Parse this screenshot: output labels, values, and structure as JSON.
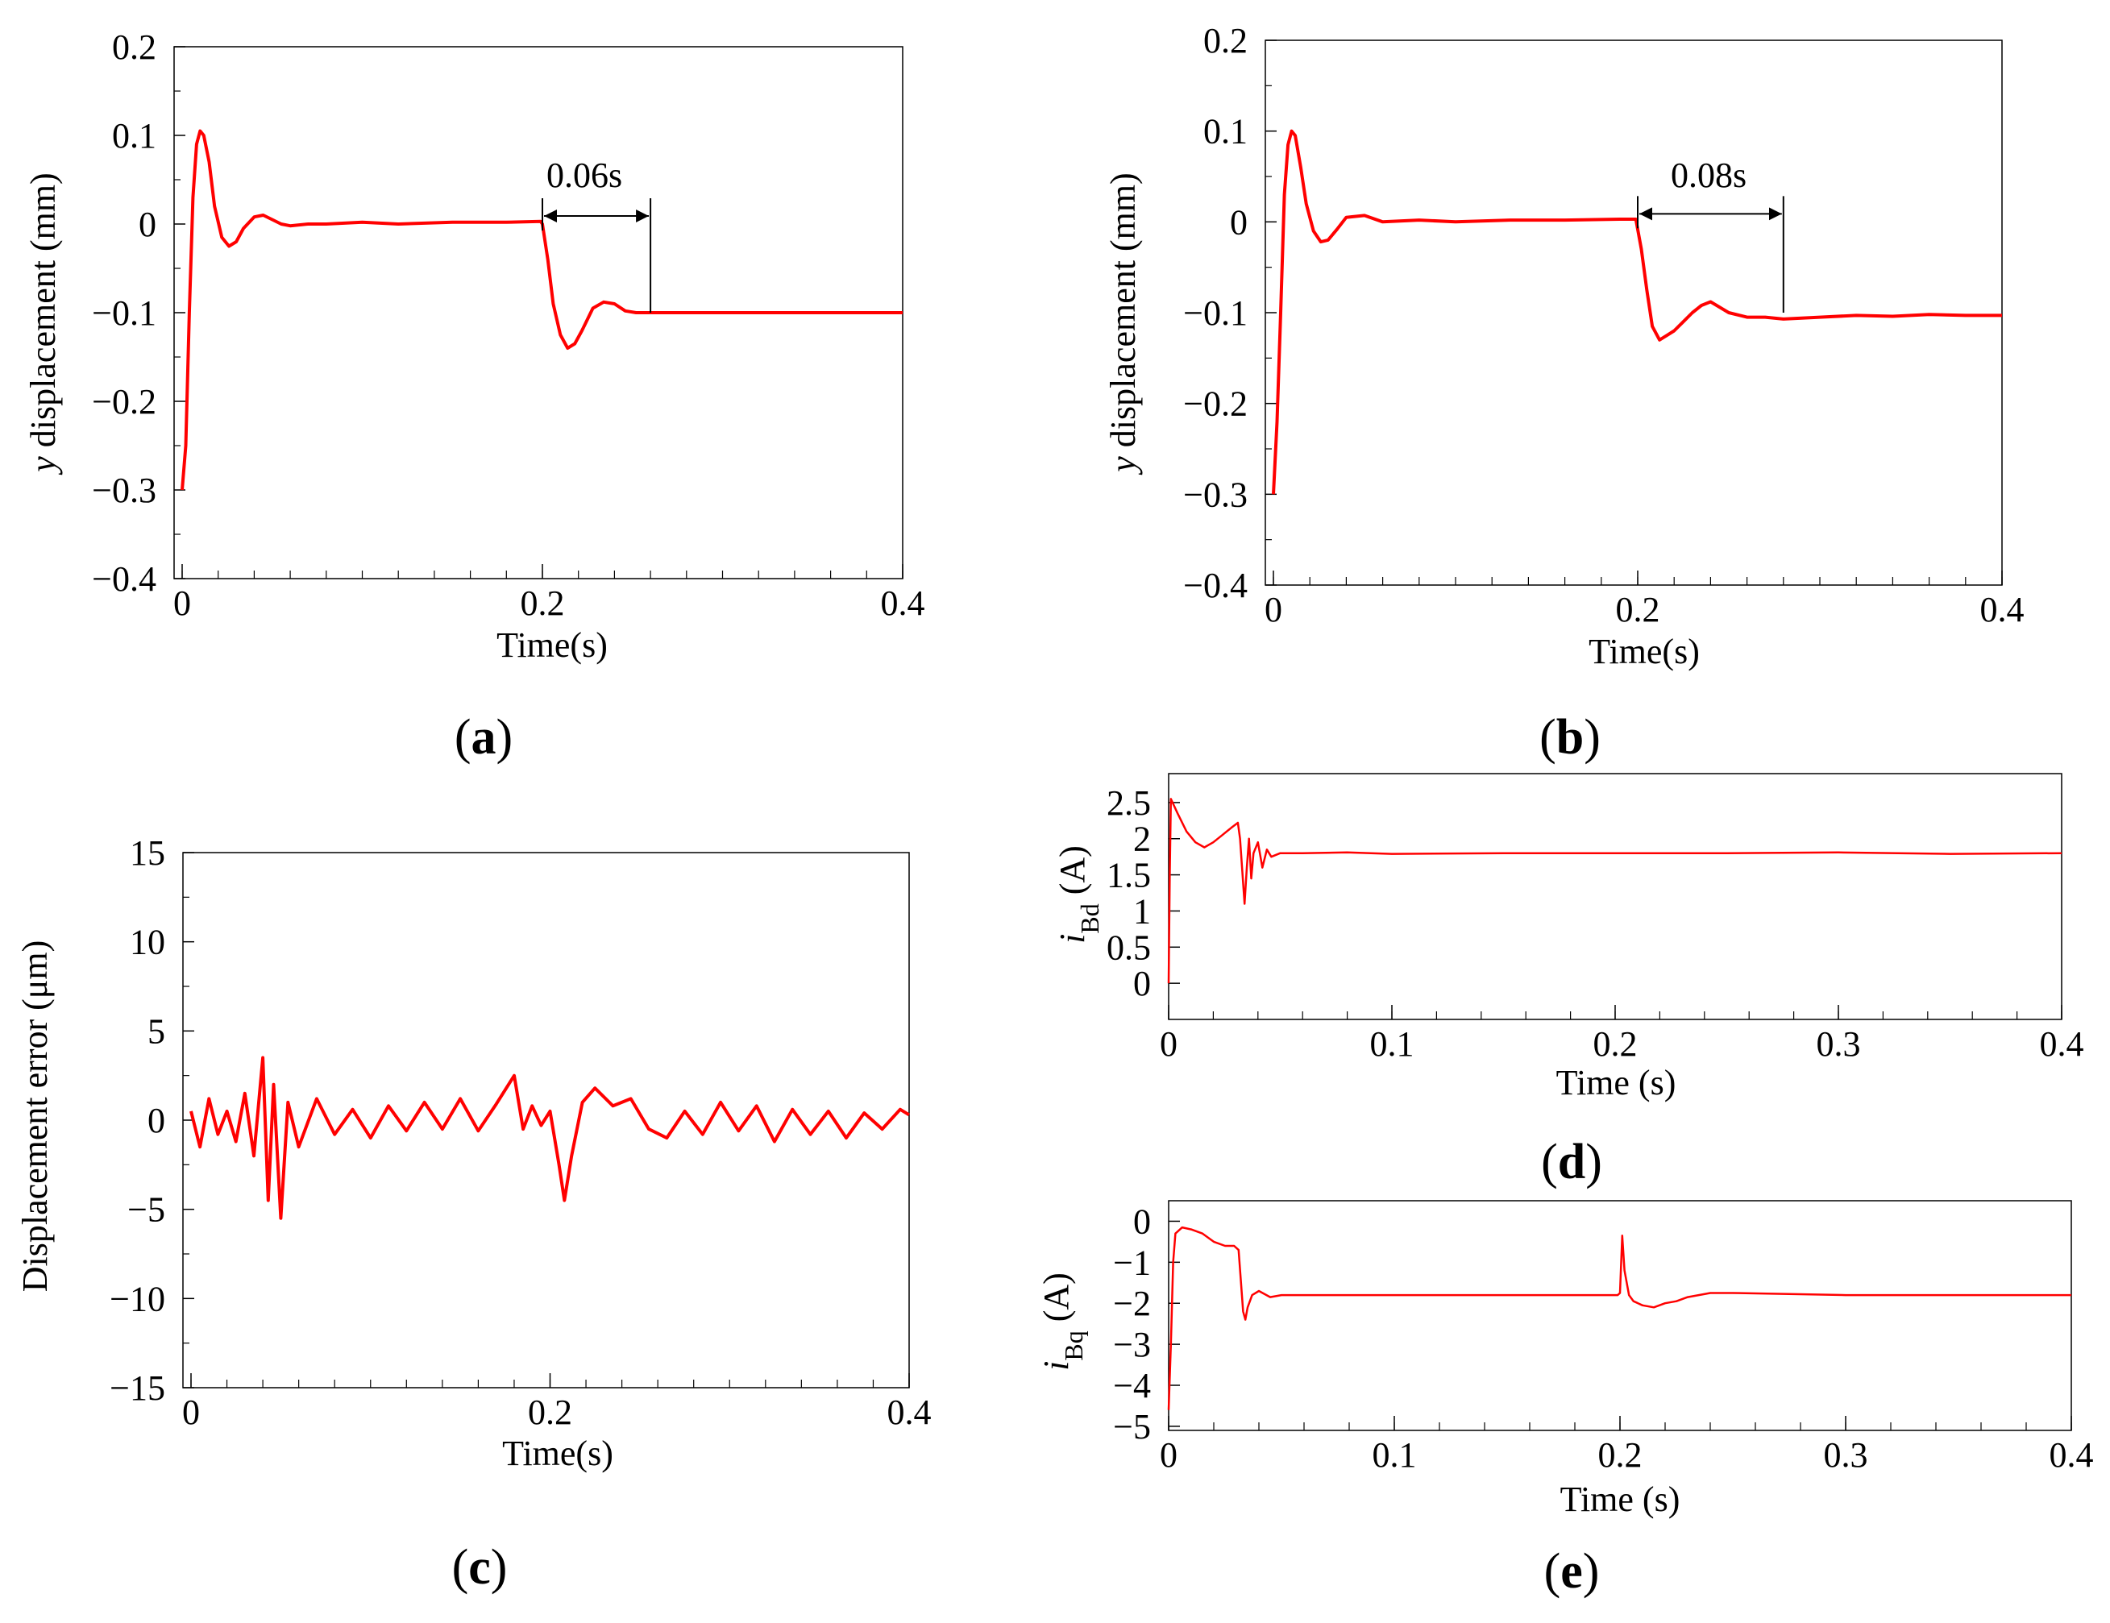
{
  "colors": {
    "series": "#ff0000",
    "axis": "#000000",
    "background": "#ffffff"
  },
  "panels": [
    {
      "label_open": "(",
      "label_letter": "a",
      "label_close": ")"
    },
    {
      "label_open": "(",
      "label_letter": "b",
      "label_close": ")"
    },
    {
      "label_open": "(",
      "label_letter": "c",
      "label_close": ")"
    },
    {
      "label_open": "(",
      "label_letter": "d",
      "label_close": ")"
    },
    {
      "label_open": "(",
      "label_letter": "e",
      "label_close": ")"
    }
  ],
  "chart_data": [
    {
      "type": "line",
      "xlabel": "Time(s)",
      "ylabel": "y displacement (mm)",
      "ylabel_italic": "y",
      "ylabel_rest": " displacement (mm)",
      "xlim": [
        0,
        0.4
      ],
      "ylim": [
        -0.4,
        0.2
      ],
      "xticks": [
        0,
        0.2,
        0.4
      ],
      "xtick_labels": [
        "0",
        "0.2",
        "0.4"
      ],
      "yticks": [
        -0.4,
        -0.3,
        -0.2,
        -0.1,
        0,
        0.1,
        0.2
      ],
      "ytick_labels": [
        "−0.4",
        "−0.3",
        "−0.2",
        "−0.1",
        "0",
        "0.1",
        "0.2"
      ],
      "grid": false,
      "annotation": {
        "text": "0.06s",
        "x_start": 0.2,
        "x_end": 0.26,
        "y": 0.0
      },
      "series": [
        {
          "x": [
            0,
            0.002,
            0.004,
            0.006,
            0.008,
            0.01,
            0.012,
            0.015,
            0.018,
            0.022,
            0.026,
            0.03,
            0.034,
            0.04,
            0.045,
            0.05,
            0.055,
            0.06,
            0.07,
            0.08,
            0.1,
            0.12,
            0.15,
            0.18,
            0.199,
            0.2,
            0.203,
            0.206,
            0.21,
            0.214,
            0.218,
            0.222,
            0.228,
            0.234,
            0.24,
            0.246,
            0.252,
            0.258,
            0.26,
            0.3,
            0.35,
            0.4
          ],
          "y": [
            -0.3,
            -0.25,
            -0.1,
            0.03,
            0.09,
            0.105,
            0.1,
            0.07,
            0.02,
            -0.015,
            -0.025,
            -0.02,
            -0.005,
            0.008,
            0.01,
            0.005,
            0.0,
            -0.002,
            0.0,
            0.0,
            0.002,
            0.0,
            0.002,
            0.002,
            0.003,
            0.0,
            -0.04,
            -0.09,
            -0.125,
            -0.14,
            -0.135,
            -0.12,
            -0.095,
            -0.088,
            -0.09,
            -0.098,
            -0.1,
            -0.1,
            -0.1,
            -0.1,
            -0.1,
            -0.1
          ]
        }
      ]
    },
    {
      "type": "line",
      "xlabel": "Time(s)",
      "ylabel": "y displacement (mm)",
      "ylabel_italic": "y",
      "ylabel_rest": " displacement (mm)",
      "xlim": [
        0,
        0.4
      ],
      "ylim": [
        -0.4,
        0.2
      ],
      "xticks": [
        0,
        0.2,
        0.4
      ],
      "xtick_labels": [
        "0",
        "0.2",
        "0.4"
      ],
      "yticks": [
        -0.4,
        -0.3,
        -0.2,
        -0.1,
        0,
        0.1,
        0.2
      ],
      "ytick_labels": [
        "−0.4",
        "−0.3",
        "−0.2",
        "−0.1",
        "0",
        "0.1",
        "0.2"
      ],
      "grid": false,
      "annotation": {
        "text": "0.08s",
        "x_start": 0.2,
        "x_end": 0.28,
        "y": 0.0
      },
      "series": [
        {
          "x": [
            0,
            0.002,
            0.004,
            0.006,
            0.008,
            0.01,
            0.012,
            0.015,
            0.018,
            0.022,
            0.026,
            0.03,
            0.035,
            0.04,
            0.05,
            0.06,
            0.08,
            0.1,
            0.13,
            0.16,
            0.19,
            0.199,
            0.202,
            0.205,
            0.208,
            0.212,
            0.216,
            0.22,
            0.225,
            0.23,
            0.235,
            0.24,
            0.25,
            0.26,
            0.27,
            0.28,
            0.3,
            0.32,
            0.34,
            0.36,
            0.38,
            0.4
          ],
          "y": [
            -0.3,
            -0.22,
            -0.1,
            0.03,
            0.085,
            0.1,
            0.095,
            0.06,
            0.02,
            -0.01,
            -0.022,
            -0.02,
            -0.008,
            0.005,
            0.007,
            0.0,
            0.002,
            0.0,
            0.002,
            0.002,
            0.003,
            0.003,
            -0.03,
            -0.075,
            -0.115,
            -0.13,
            -0.125,
            -0.12,
            -0.11,
            -0.1,
            -0.092,
            -0.088,
            -0.1,
            -0.105,
            -0.105,
            -0.107,
            -0.105,
            -0.103,
            -0.104,
            -0.102,
            -0.103,
            -0.103
          ]
        }
      ]
    },
    {
      "type": "line",
      "xlabel": "Time(s)",
      "ylabel": "Displacement error (μm)",
      "xlim": [
        0,
        0.4
      ],
      "ylim": [
        -15,
        15
      ],
      "xticks": [
        0,
        0.2,
        0.4
      ],
      "xtick_labels": [
        "0",
        "0.2",
        "0.4"
      ],
      "yticks": [
        -15,
        -10,
        -5,
        0,
        5,
        10,
        15
      ],
      "ytick_labels": [
        "−15",
        "−10",
        "−5",
        "0",
        "5",
        "10",
        "15"
      ],
      "grid": false,
      "series": [
        {
          "x": [
            0,
            0.005,
            0.01,
            0.015,
            0.02,
            0.025,
            0.03,
            0.035,
            0.04,
            0.043,
            0.046,
            0.05,
            0.054,
            0.06,
            0.07,
            0.08,
            0.09,
            0.1,
            0.11,
            0.12,
            0.13,
            0.14,
            0.15,
            0.16,
            0.17,
            0.18,
            0.185,
            0.19,
            0.195,
            0.2,
            0.205,
            0.208,
            0.212,
            0.218,
            0.225,
            0.235,
            0.245,
            0.255,
            0.265,
            0.275,
            0.285,
            0.295,
            0.305,
            0.315,
            0.325,
            0.335,
            0.345,
            0.355,
            0.365,
            0.375,
            0.385,
            0.395,
            0.4
          ],
          "y": [
            0.5,
            -1.5,
            1.2,
            -0.8,
            0.5,
            -1.2,
            1.5,
            -2.0,
            3.5,
            -4.5,
            2.0,
            -5.5,
            1.0,
            -1.5,
            1.2,
            -0.8,
            0.6,
            -1.0,
            0.8,
            -0.6,
            1.0,
            -0.5,
            1.2,
            -0.6,
            0.9,
            2.5,
            -0.5,
            0.8,
            -0.3,
            0.5,
            -2.5,
            -4.5,
            -2.0,
            1.0,
            1.8,
            0.8,
            1.2,
            -0.5,
            -1.0,
            0.5,
            -0.8,
            1.0,
            -0.6,
            0.8,
            -1.2,
            0.6,
            -0.8,
            0.5,
            -1.0,
            0.4,
            -0.5,
            0.6,
            0.3
          ]
        }
      ]
    },
    {
      "type": "line",
      "xlabel": "Time (s)",
      "ylabel_italic": "i",
      "ylabel_sub": "Bd",
      "ylabel_rest": " (A)",
      "xlim": [
        0,
        0.4
      ],
      "ylim": [
        -0.5,
        2.9
      ],
      "xticks": [
        0,
        0.1,
        0.2,
        0.3,
        0.4
      ],
      "xtick_labels": [
        "0",
        "0.1",
        "0.2",
        "0.3",
        "0.4"
      ],
      "yticks": [
        0,
        0.5,
        1,
        1.5,
        2,
        2.5
      ],
      "ytick_labels": [
        "0",
        "0.5",
        "1",
        "1.5",
        "2",
        "2.5"
      ],
      "grid": false,
      "series": [
        {
          "x": [
            0,
            0.0005,
            0.001,
            0.004,
            0.008,
            0.012,
            0.016,
            0.02,
            0.024,
            0.028,
            0.031,
            0.032,
            0.033,
            0.034,
            0.035,
            0.036,
            0.037,
            0.038,
            0.04,
            0.042,
            0.044,
            0.046,
            0.05,
            0.06,
            0.08,
            0.1,
            0.15,
            0.2,
            0.25,
            0.3,
            0.35,
            0.4
          ],
          "y": [
            0.0,
            1.5,
            2.55,
            2.35,
            2.1,
            1.95,
            1.88,
            1.95,
            2.05,
            2.15,
            2.22,
            2.0,
            1.55,
            1.1,
            1.6,
            2.0,
            1.45,
            1.8,
            1.95,
            1.6,
            1.85,
            1.75,
            1.8,
            1.8,
            1.81,
            1.79,
            1.8,
            1.8,
            1.8,
            1.81,
            1.79,
            1.8
          ]
        }
      ]
    },
    {
      "type": "line",
      "xlabel": "Time (s)",
      "ylabel_italic": "i",
      "ylabel_sub": "Bq",
      "ylabel_rest": " (A)",
      "xlim": [
        0,
        0.4
      ],
      "ylim": [
        -5.1,
        0.5
      ],
      "xticks": [
        0,
        0.1,
        0.2,
        0.3,
        0.4
      ],
      "xtick_labels": [
        "0",
        "0.1",
        "0.2",
        "0.3",
        "0.4"
      ],
      "yticks": [
        -5,
        -4,
        -3,
        -2,
        -1,
        0
      ],
      "ytick_labels": [
        "−5",
        "−4",
        "−3",
        "−2",
        "−1",
        "0"
      ],
      "grid": false,
      "series": [
        {
          "x": [
            0,
            0.001,
            0.002,
            0.003,
            0.006,
            0.01,
            0.015,
            0.02,
            0.025,
            0.029,
            0.031,
            0.033,
            0.034,
            0.035,
            0.037,
            0.04,
            0.045,
            0.05,
            0.06,
            0.08,
            0.1,
            0.15,
            0.199,
            0.2,
            0.201,
            0.202,
            0.204,
            0.206,
            0.21,
            0.215,
            0.22,
            0.225,
            0.23,
            0.24,
            0.25,
            0.3,
            0.35,
            0.4
          ],
          "y": [
            -4.6,
            -3.0,
            -1.0,
            -0.3,
            -0.15,
            -0.2,
            -0.3,
            -0.5,
            -0.6,
            -0.6,
            -0.7,
            -2.2,
            -2.4,
            -2.1,
            -1.8,
            -1.7,
            -1.85,
            -1.8,
            -1.8,
            -1.8,
            -1.8,
            -1.8,
            -1.8,
            -1.75,
            -0.35,
            -1.2,
            -1.8,
            -1.95,
            -2.05,
            -2.1,
            -2.0,
            -1.95,
            -1.85,
            -1.75,
            -1.75,
            -1.8,
            -1.8,
            -1.8
          ]
        }
      ]
    }
  ]
}
